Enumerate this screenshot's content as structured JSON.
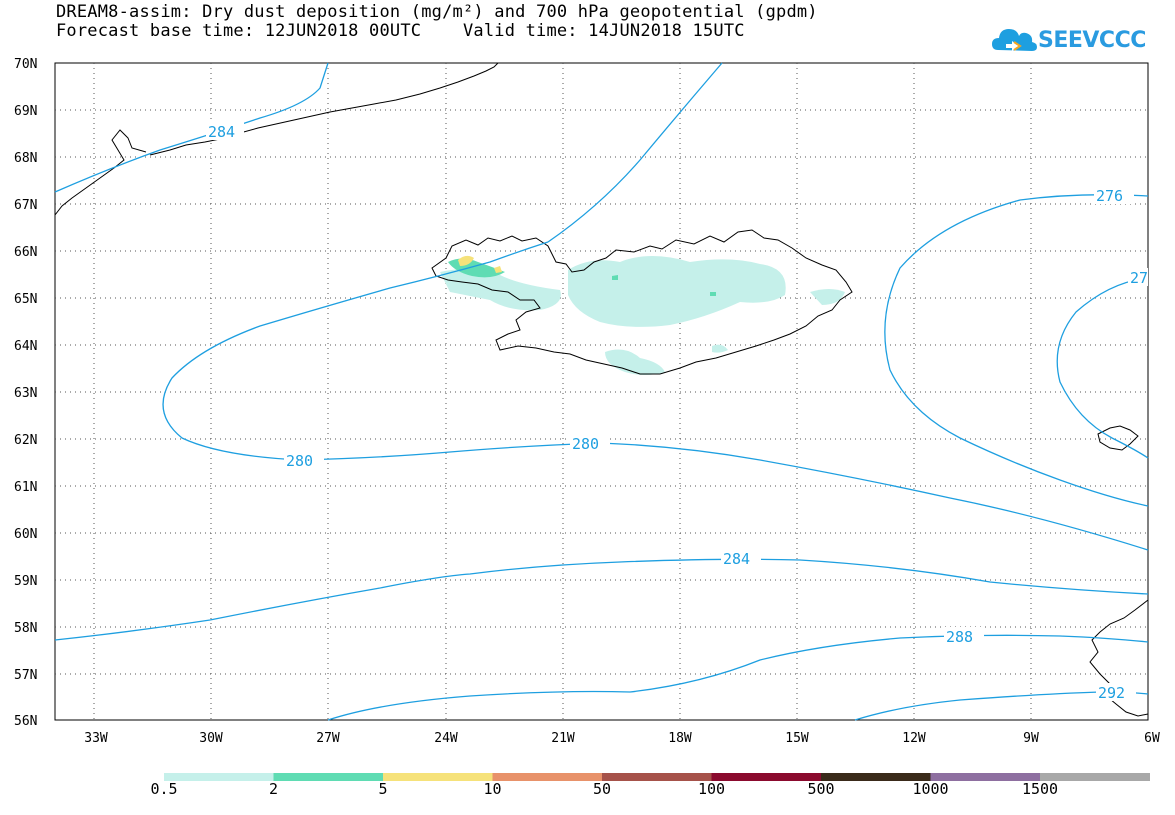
{
  "title": {
    "line1": "DREAM8-assim: Dry dust deposition (mg/m²) and 700 hPa geopotential (gpdm)",
    "line2": "Forecast base time: 12JUN2018 00UTC    Valid time: 14JUN2018 15UTC"
  },
  "logo": {
    "text": "SEEVCCC",
    "icon": "cloud-logo-icon",
    "color": "#1e9fe0"
  },
  "axes": {
    "lon_labels": [
      "33W",
      "30W",
      "27W",
      "24W",
      "21W",
      "18W",
      "15W",
      "12W",
      "9W",
      "6W"
    ],
    "lat_labels": [
      "70N",
      "69N",
      "68N",
      "67N",
      "66N",
      "65N",
      "64N",
      "63N",
      "62N",
      "61N",
      "60N",
      "59N",
      "58N",
      "57N",
      "56N"
    ],
    "lon_range": [
      -34,
      -6
    ],
    "lat_range": [
      56,
      70
    ],
    "grid": "dotted"
  },
  "contours": {
    "variable": "700 hPa geopotential (gpdm)",
    "color": "#1e9fe0",
    "labels": [
      "284",
      "280",
      "280",
      "284",
      "288",
      "292",
      "276",
      "27"
    ]
  },
  "colorbar": {
    "colors": [
      "#c5f0ea",
      "#5fdcb3",
      "#f6e27a",
      "#e8926a",
      "#a6524a",
      "#8b0a2e",
      "#3a2a1a",
      "#8e6fa0",
      "#a8a8a8"
    ],
    "labels": [
      "0.5",
      "2",
      "5",
      "10",
      "50",
      "100",
      "500",
      "1000",
      "1500"
    ]
  }
}
